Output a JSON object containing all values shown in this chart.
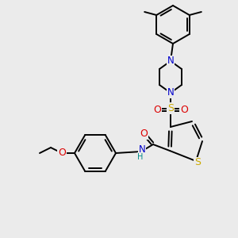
{
  "background_color": "#ebebeb",
  "fig_size": [
    3.0,
    3.0
  ],
  "dpi": 100,
  "atom_colors": {
    "C": "#000000",
    "N": "#0000cc",
    "O": "#dd0000",
    "S_thio": "#ccaa00",
    "S_sul": "#ccaa00",
    "H": "#008888"
  },
  "bond_color": "#000000",
  "bond_width": 1.4
}
